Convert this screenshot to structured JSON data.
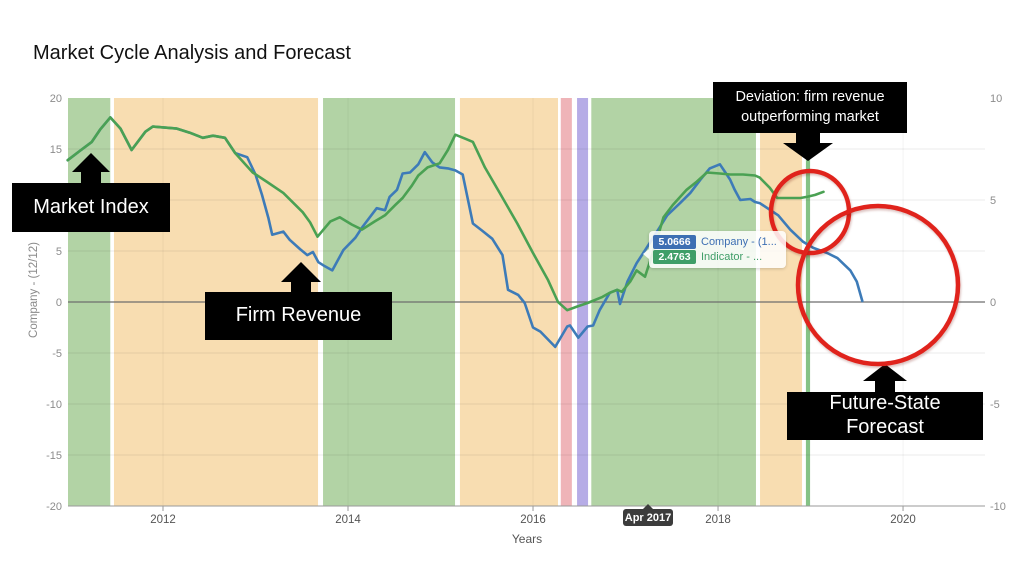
{
  "title": "Market Cycle Analysis and Forecast",
  "axes": {
    "x_title": "Years",
    "y_title_left": "Company - (12/12)"
  },
  "x_marker": {
    "label": "Apr 2017"
  },
  "tooltip": {
    "company_value": "5.0666",
    "company_label": "Company - (1...",
    "indicator_value": "2.4763",
    "indicator_label": "Indicator - ..."
  },
  "annotations": {
    "market_index": {
      "label": "Market Index"
    },
    "firm_revenue": {
      "label": "Firm Revenue"
    },
    "deviation": {
      "line1": "Deviation: firm revenue",
      "line2": "outperforming market"
    },
    "future_state": {
      "line1": "Future-State",
      "line2": "Forecast"
    }
  },
  "colors": {
    "bands": {
      "green": "#b2d3a5",
      "orange": "#f8ddb1",
      "pink": "#efb4b8",
      "purple": "#b6ace6",
      "greenline": "#85c285"
    },
    "grid_h": "rgba(0,0,0,0.08)",
    "grid_v": "rgba(0,0,0,0.05)",
    "zero_line": "#6e6e6e",
    "axis_line": "#9a9a9a",
    "tick_mark": "#9a9a9a",
    "y_tick_text": "#8c8c8c",
    "x_tick_text": "#555555",
    "axis_title_text": "#8a8a8a",
    "company_line": "#3d7bb8",
    "indicator_line": "#4aa153",
    "highlight_circle": "#e0231c",
    "badge_company": "#3d6fb3",
    "badge_indicator": "#3f9e68",
    "callout_bg": "#000000",
    "callout_text": "#ffffff",
    "marker_bg": "#3c3c3c"
  },
  "chart_data": {
    "type": "line",
    "title": "Market Cycle Analysis and Forecast",
    "xlabel": "Years",
    "ylabel": "Company - (12/12)",
    "xlim": [
      2010.973,
      2020.886
    ],
    "ylim_left": [
      -20,
      20
    ],
    "ylim_right": [
      -10,
      10
    ],
    "x_ticks": [
      2012,
      2014,
      2016,
      2018,
      2020
    ],
    "y_ticks_left": [
      20,
      15,
      10,
      5,
      0,
      -5,
      -10,
      -15,
      -20
    ],
    "y_ticks_right": [
      10,
      5,
      0,
      -5,
      -10
    ],
    "grid": true,
    "legend_position": "tooltip-overlay",
    "hover_point": {
      "date": "Apr 2017",
      "x": 2017.29,
      "company": 5.0666,
      "indicator": 2.4763
    },
    "bands": [
      {
        "from": 2010.973,
        "to": 2011.43,
        "type": "green"
      },
      {
        "from": 2011.47,
        "to": 2013.676,
        "type": "orange"
      },
      {
        "from": 2013.73,
        "to": 2015.157,
        "type": "green"
      },
      {
        "from": 2015.21,
        "to": 2016.27,
        "type": "orange"
      },
      {
        "from": 2016.3,
        "to": 2016.42,
        "type": "pink"
      },
      {
        "from": 2016.476,
        "to": 2016.595,
        "type": "purple"
      },
      {
        "from": 2016.63,
        "to": 2018.41,
        "type": "green"
      },
      {
        "from": 2018.454,
        "to": 2018.908,
        "type": "orange"
      },
      {
        "from": 2018.95,
        "to": 2018.995,
        "type": "greenline"
      }
    ],
    "series": [
      {
        "name": "Company",
        "key": "company",
        "color": "#3d7bb8",
        "points": [
          [
            2010.97,
            13.9
          ],
          [
            2011.1,
            14.8
          ],
          [
            2011.23,
            15.7
          ],
          [
            2011.32,
            16.9
          ],
          [
            2011.43,
            18.1
          ],
          [
            2011.54,
            17.0
          ],
          [
            2011.66,
            14.9
          ],
          [
            2011.81,
            16.7
          ],
          [
            2011.89,
            17.2
          ],
          [
            2012.02,
            17.1
          ],
          [
            2012.15,
            17.0
          ],
          [
            2012.29,
            16.6
          ],
          [
            2012.43,
            16.1
          ],
          [
            2012.54,
            16.3
          ],
          [
            2012.67,
            16.1
          ],
          [
            2012.78,
            14.6
          ],
          [
            2012.91,
            14.2
          ],
          [
            2013.0,
            12.5
          ],
          [
            2013.07,
            10.5
          ],
          [
            2013.14,
            8.2
          ],
          [
            2013.18,
            6.6
          ],
          [
            2013.3,
            6.9
          ],
          [
            2013.37,
            6.1
          ],
          [
            2013.48,
            5.2
          ],
          [
            2013.56,
            4.6
          ],
          [
            2013.62,
            4.9
          ],
          [
            2013.68,
            3.9
          ],
          [
            2013.75,
            3.5
          ],
          [
            2013.83,
            3.1
          ],
          [
            2013.95,
            5.1
          ],
          [
            2014.08,
            6.3
          ],
          [
            2014.16,
            7.4
          ],
          [
            2014.31,
            9.2
          ],
          [
            2014.4,
            9.0
          ],
          [
            2014.45,
            10.3
          ],
          [
            2014.53,
            11.0
          ],
          [
            2014.59,
            12.6
          ],
          [
            2014.67,
            12.7
          ],
          [
            2014.76,
            13.5
          ],
          [
            2014.83,
            14.7
          ],
          [
            2014.91,
            13.7
          ],
          [
            2014.99,
            13.2
          ],
          [
            2015.08,
            13.1
          ],
          [
            2015.16,
            12.9
          ],
          [
            2015.24,
            12.5
          ],
          [
            2015.35,
            7.7
          ],
          [
            2015.45,
            7.0
          ],
          [
            2015.56,
            6.2
          ],
          [
            2015.67,
            4.6
          ],
          [
            2015.73,
            1.2
          ],
          [
            2015.84,
            0.7
          ],
          [
            2015.91,
            -0.1
          ],
          [
            2016.0,
            -2.5
          ],
          [
            2016.08,
            -2.9
          ],
          [
            2016.24,
            -4.4
          ],
          [
            2016.37,
            -2.4
          ],
          [
            2016.4,
            -2.3
          ],
          [
            2016.49,
            -3.5
          ],
          [
            2016.59,
            -2.4
          ],
          [
            2016.65,
            -2.3
          ],
          [
            2016.72,
            -0.8
          ],
          [
            2016.83,
            0.9
          ],
          [
            2016.91,
            1.2
          ],
          [
            2016.94,
            -0.2
          ],
          [
            2017.02,
            2.0
          ],
          [
            2017.12,
            3.8
          ],
          [
            2017.21,
            5.07
          ],
          [
            2017.32,
            6.6
          ],
          [
            2017.45,
            8.5
          ],
          [
            2017.59,
            9.7
          ],
          [
            2017.7,
            10.7
          ],
          [
            2017.81,
            12.0
          ],
          [
            2017.91,
            13.1
          ],
          [
            2018.02,
            13.5
          ],
          [
            2018.08,
            12.7
          ],
          [
            2018.13,
            12.0
          ],
          [
            2018.18,
            11.0
          ],
          [
            2018.24,
            10.0
          ],
          [
            2018.35,
            10.1
          ],
          [
            2018.4,
            9.8
          ],
          [
            2018.45,
            9.7
          ],
          [
            2018.65,
            8.5
          ],
          [
            2018.78,
            7.1
          ],
          [
            2018.92,
            5.9
          ],
          [
            2019.03,
            5.3
          ],
          [
            2019.18,
            4.8
          ],
          [
            2019.29,
            4.3
          ],
          [
            2019.43,
            3.1
          ],
          [
            2019.5,
            2.0
          ],
          [
            2019.56,
            0.1
          ]
        ]
      },
      {
        "name": "Indicator",
        "key": "indicator",
        "color": "#4aa153",
        "points": [
          [
            2010.97,
            13.9
          ],
          [
            2011.1,
            14.8
          ],
          [
            2011.23,
            15.7
          ],
          [
            2011.32,
            16.9
          ],
          [
            2011.43,
            18.1
          ],
          [
            2011.54,
            17.0
          ],
          [
            2011.66,
            14.9
          ],
          [
            2011.81,
            16.7
          ],
          [
            2011.89,
            17.2
          ],
          [
            2012.02,
            17.1
          ],
          [
            2012.15,
            17.0
          ],
          [
            2012.29,
            16.6
          ],
          [
            2012.43,
            16.1
          ],
          [
            2012.54,
            16.3
          ],
          [
            2012.67,
            16.1
          ],
          [
            2012.78,
            14.6
          ],
          [
            2012.97,
            12.7
          ],
          [
            2013.12,
            11.8
          ],
          [
            2013.3,
            10.7
          ],
          [
            2013.51,
            8.8
          ],
          [
            2013.59,
            7.8
          ],
          [
            2013.67,
            6.4
          ],
          [
            2013.81,
            7.9
          ],
          [
            2013.91,
            8.3
          ],
          [
            2014.04,
            7.6
          ],
          [
            2014.15,
            7.1
          ],
          [
            2014.29,
            7.9
          ],
          [
            2014.4,
            8.5
          ],
          [
            2014.51,
            9.5
          ],
          [
            2014.59,
            10.2
          ],
          [
            2014.69,
            11.4
          ],
          [
            2014.76,
            12.4
          ],
          [
            2014.86,
            13.2
          ],
          [
            2014.99,
            13.6
          ],
          [
            2015.08,
            14.9
          ],
          [
            2015.16,
            16.4
          ],
          [
            2015.27,
            16.0
          ],
          [
            2015.35,
            15.7
          ],
          [
            2015.48,
            13.2
          ],
          [
            2015.64,
            10.7
          ],
          [
            2015.83,
            7.7
          ],
          [
            2016.0,
            4.8
          ],
          [
            2016.16,
            2.2
          ],
          [
            2016.27,
            0.0
          ],
          [
            2016.37,
            -0.8
          ],
          [
            2016.49,
            -0.4
          ],
          [
            2016.59,
            -0.1
          ],
          [
            2016.75,
            0.5
          ],
          [
            2016.83,
            0.9
          ],
          [
            2016.91,
            1.2
          ],
          [
            2016.96,
            1.0
          ],
          [
            2017.05,
            2.0
          ],
          [
            2017.12,
            3.1
          ],
          [
            2017.21,
            2.48
          ],
          [
            2017.32,
            5.5
          ],
          [
            2017.41,
            8.3
          ],
          [
            2017.51,
            9.5
          ],
          [
            2017.66,
            11.0
          ],
          [
            2017.77,
            11.8
          ],
          [
            2017.88,
            12.7
          ],
          [
            2018.02,
            12.6
          ],
          [
            2018.13,
            12.5
          ],
          [
            2018.27,
            12.5
          ],
          [
            2018.4,
            12.4
          ],
          [
            2018.45,
            12.2
          ],
          [
            2018.56,
            11.2
          ],
          [
            2018.64,
            10.2
          ],
          [
            2018.78,
            10.2
          ],
          [
            2018.89,
            10.2
          ],
          [
            2018.96,
            10.3
          ],
          [
            2019.05,
            10.5
          ],
          [
            2019.14,
            10.8
          ]
        ]
      }
    ]
  }
}
